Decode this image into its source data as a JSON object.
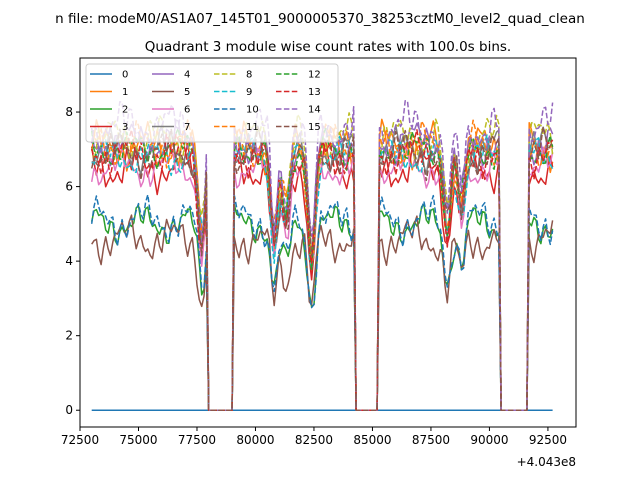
{
  "chart_data": {
    "type": "line",
    "suptitle": "n file: modeM0/AS1A07_145T01_9000005370_38253cztM0_level2_quad_clean",
    "title": "Quadrant 3 module wise count rates with 100.0s bins.",
    "xlabel": "",
    "ylabel": "",
    "x_offset_label": "+4.043e8",
    "xlim": [
      72500,
      93700
    ],
    "ylim": [
      -0.45,
      9.45
    ],
    "x_ticks": [
      72500,
      75000,
      77500,
      80000,
      82500,
      85000,
      87500,
      90000,
      92500
    ],
    "x_tick_labels": [
      "72500",
      "75000",
      "77500",
      "80000",
      "82500",
      "85000",
      "87500",
      "90000",
      "92500"
    ],
    "y_ticks": [
      0,
      2,
      4,
      6,
      8
    ],
    "y_tick_labels": [
      "0",
      "2",
      "4",
      "6",
      "8"
    ],
    "grid": false,
    "legend_position": "top-left",
    "x_start": 73000,
    "x_step": 100,
    "x_end": 92700,
    "gaps": [
      [
        77900,
        79100
      ],
      [
        84200,
        85300
      ],
      [
        90400,
        91700
      ]
    ],
    "series": [
      {
        "name": "0",
        "color": "#1f77b4",
        "style": "solid",
        "values": [
          0,
          0
        ]
      },
      {
        "name": "1",
        "color": "#ff7f0e",
        "style": "solid",
        "base": 7.1,
        "amp": 0.35,
        "phase": 0.4
      },
      {
        "name": "2",
        "color": "#2ca02c",
        "style": "solid",
        "base": 5.0,
        "amp": 0.3,
        "phase": 1.1
      },
      {
        "name": "3",
        "color": "#d62728",
        "style": "solid",
        "base": 6.5,
        "amp": 0.35,
        "phase": 1.9
      },
      {
        "name": "4",
        "color": "#9467bd",
        "style": "solid",
        "base": 7.2,
        "amp": 0.35,
        "phase": 2.6
      },
      {
        "name": "5",
        "color": "#8c564b",
        "style": "solid",
        "base": 4.6,
        "amp": 0.35,
        "phase": 3.2
      },
      {
        "name": "6",
        "color": "#e377c2",
        "style": "solid",
        "base": 6.5,
        "amp": 0.3,
        "phase": 3.9
      },
      {
        "name": "7",
        "color": "#7f7f7f",
        "style": "solid",
        "base": 7.0,
        "amp": 0.35,
        "phase": 4.5
      },
      {
        "name": "8",
        "color": "#bcbd22",
        "style": "dashed",
        "base": 7.3,
        "amp": 0.35,
        "phase": 5.1
      },
      {
        "name": "9",
        "color": "#17becf",
        "style": "dashed",
        "base": 6.8,
        "amp": 0.3,
        "phase": 5.8
      },
      {
        "name": "10",
        "color": "#1f77b4",
        "style": "dashed",
        "base": 5.1,
        "amp": 0.35,
        "phase": 0.8
      },
      {
        "name": "11",
        "color": "#ff7f0e",
        "style": "dashed",
        "base": 7.1,
        "amp": 0.35,
        "phase": 1.5
      },
      {
        "name": "12",
        "color": "#2ca02c",
        "style": "dashed",
        "base": 7.0,
        "amp": 0.3,
        "phase": 2.2
      },
      {
        "name": "13",
        "color": "#d62728",
        "style": "dashed",
        "base": 6.9,
        "amp": 0.35,
        "phase": 2.9
      },
      {
        "name": "14",
        "color": "#9467bd",
        "style": "dashed",
        "base": 7.6,
        "amp": 0.4,
        "phase": 3.6
      },
      {
        "name": "15",
        "color": "#8c564b",
        "style": "dashed",
        "base": 6.9,
        "amp": 0.35,
        "phase": 4.2
      }
    ]
  }
}
